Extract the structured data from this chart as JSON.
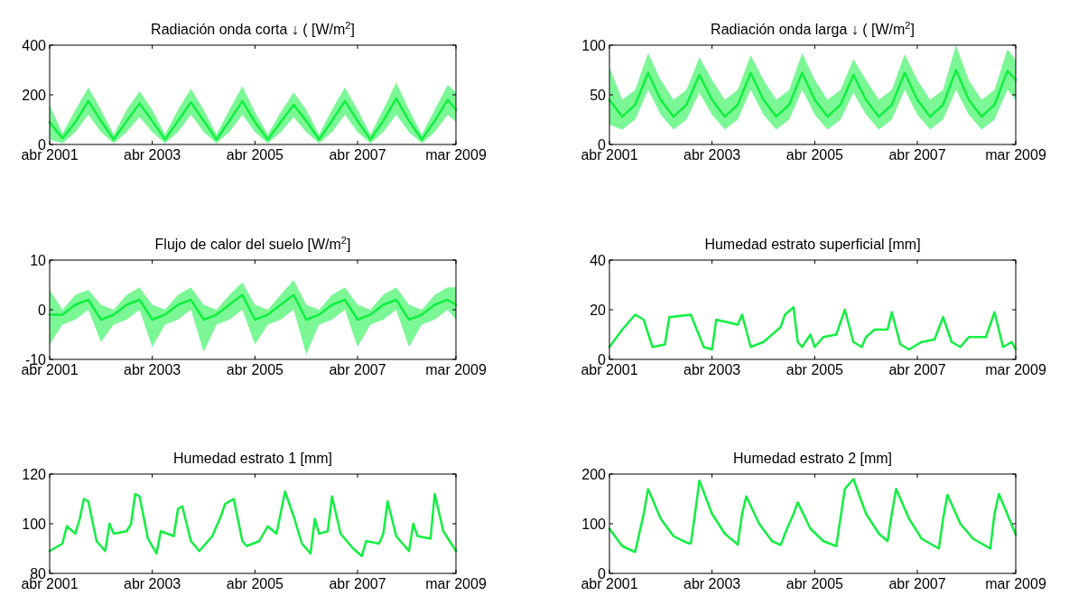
{
  "chart_data": [
    {
      "type": "line",
      "title": "Radiación onda corta ↓ ( [W/m$^{2}$]",
      "xlim": [
        "2001-04-01",
        "2009-03-01"
      ],
      "xticks": [
        {
          "value": "2001-04-01",
          "label": "abr 2001"
        },
        {
          "value": "2003-04-01",
          "label": "abr 2003"
        },
        {
          "value": "2005-04-01",
          "label": "abr 2005"
        },
        {
          "value": "2007-04-01",
          "label": "abr 2007"
        },
        {
          "value": "2009-03-01",
          "label": "mar 2009"
        }
      ],
      "ylim": [
        0,
        400
      ],
      "yticks": [
        0,
        200,
        400
      ],
      "x": [
        "2001-04",
        "2001-07",
        "2001-10",
        "2002-01",
        "2002-04",
        "2002-07",
        "2002-10",
        "2003-01",
        "2003-04",
        "2003-07",
        "2003-10",
        "2004-01",
        "2004-04",
        "2004-07",
        "2004-10",
        "2005-01",
        "2005-04",
        "2005-07",
        "2005-10",
        "2006-01",
        "2006-04",
        "2006-07",
        "2006-10",
        "2007-01",
        "2007-04",
        "2007-07",
        "2007-10",
        "2008-01",
        "2008-04",
        "2008-07",
        "2008-10",
        "2009-01",
        "2009-03"
      ],
      "series": [
        {
          "color": "#10f040",
          "values": [
            90,
            25,
            90,
            175,
            95,
            20,
            95,
            165,
            95,
            20,
            95,
            170,
            95,
            20,
            95,
            175,
            90,
            20,
            90,
            160,
            95,
            20,
            95,
            175,
            95,
            20,
            95,
            185,
            95,
            20,
            95,
            180,
            140
          ],
          "lower": [
            20,
            5,
            50,
            120,
            50,
            5,
            50,
            110,
            50,
            5,
            50,
            120,
            50,
            5,
            50,
            120,
            50,
            5,
            50,
            110,
            50,
            5,
            50,
            120,
            50,
            5,
            50,
            120,
            50,
            5,
            50,
            120,
            90
          ],
          "upper": [
            160,
            45,
            140,
            230,
            140,
            40,
            140,
            215,
            140,
            40,
            140,
            225,
            140,
            40,
            140,
            235,
            130,
            40,
            130,
            210,
            140,
            40,
            140,
            230,
            140,
            40,
            140,
            250,
            140,
            40,
            140,
            240,
            210
          ]
        }
      ]
    },
    {
      "type": "line",
      "title": "Radiación onda larga ↓ ( [W/m$^{2}$]",
      "xlim": [
        "2001-04-01",
        "2009-03-01"
      ],
      "xticks": [
        {
          "value": "2001-04-01",
          "label": "abr 2001"
        },
        {
          "value": "2003-04-01",
          "label": "abr 2003"
        },
        {
          "value": "2005-04-01",
          "label": "abr 2005"
        },
        {
          "value": "2007-04-01",
          "label": "abr 2007"
        },
        {
          "value": "2009-03-01",
          "label": "mar 2009"
        }
      ],
      "ylim": [
        0,
        100
      ],
      "yticks": [
        0,
        50,
        100
      ],
      "x": [
        "2001-04",
        "2001-07",
        "2001-10",
        "2002-01",
        "2002-04",
        "2002-07",
        "2002-10",
        "2003-01",
        "2003-04",
        "2003-07",
        "2003-10",
        "2004-01",
        "2004-04",
        "2004-07",
        "2004-10",
        "2005-01",
        "2005-04",
        "2005-07",
        "2005-10",
        "2006-01",
        "2006-04",
        "2006-07",
        "2006-10",
        "2007-01",
        "2007-04",
        "2007-07",
        "2007-10",
        "2008-01",
        "2008-04",
        "2008-07",
        "2008-10",
        "2009-01",
        "2009-03"
      ],
      "series": [
        {
          "color": "#10f040",
          "values": [
            45,
            28,
            40,
            72,
            45,
            28,
            40,
            70,
            45,
            28,
            40,
            72,
            45,
            28,
            40,
            72,
            45,
            28,
            40,
            70,
            45,
            28,
            40,
            72,
            45,
            28,
            40,
            75,
            45,
            28,
            40,
            74,
            65
          ],
          "lower": [
            20,
            15,
            25,
            55,
            30,
            15,
            25,
            52,
            30,
            15,
            25,
            55,
            30,
            15,
            25,
            55,
            30,
            15,
            25,
            52,
            30,
            15,
            25,
            55,
            30,
            15,
            25,
            55,
            30,
            15,
            25,
            55,
            45
          ],
          "upper": [
            78,
            45,
            55,
            92,
            65,
            45,
            55,
            88,
            65,
            45,
            55,
            90,
            65,
            45,
            55,
            92,
            65,
            45,
            55,
            86,
            65,
            45,
            55,
            91,
            65,
            45,
            55,
            100,
            65,
            45,
            55,
            96,
            85
          ]
        }
      ]
    },
    {
      "type": "line",
      "title": "Flujo de calor del suelo [W/m$^{2}$]",
      "xlim": [
        "2001-04-01",
        "2009-03-01"
      ],
      "xticks": [
        {
          "value": "2001-04-01",
          "label": "abr 2001"
        },
        {
          "value": "2003-04-01",
          "label": "abr 2003"
        },
        {
          "value": "2005-04-01",
          "label": "abr 2005"
        },
        {
          "value": "2007-04-01",
          "label": "abr 2007"
        },
        {
          "value": "2009-03-01",
          "label": "mar 2009"
        }
      ],
      "ylim": [
        -10,
        10
      ],
      "yticks": [
        -10,
        0,
        10
      ],
      "x": [
        "2001-04",
        "2001-07",
        "2001-10",
        "2002-01",
        "2002-04",
        "2002-07",
        "2002-10",
        "2003-01",
        "2003-04",
        "2003-07",
        "2003-10",
        "2004-01",
        "2004-04",
        "2004-07",
        "2004-10",
        "2005-01",
        "2005-04",
        "2005-07",
        "2005-10",
        "2006-01",
        "2006-04",
        "2006-07",
        "2006-10",
        "2007-01",
        "2007-04",
        "2007-07",
        "2007-10",
        "2008-01",
        "2008-04",
        "2008-07",
        "2008-10",
        "2009-01",
        "2009-03"
      ],
      "series": [
        {
          "color": "#10f040",
          "values": [
            -1,
            -1,
            1,
            2,
            -2,
            -1,
            1,
            2,
            -2,
            -1,
            1,
            2,
            -2,
            -1,
            1,
            3,
            -2,
            -1,
            1,
            3,
            -2,
            -1,
            1,
            2,
            -2,
            -1,
            1,
            2,
            -2,
            -1,
            1,
            2,
            1
          ],
          "lower": [
            -7,
            -3,
            -2,
            0,
            -6.5,
            -3,
            -2,
            0,
            -7.5,
            -3,
            -2,
            0,
            -8.5,
            -3,
            -2,
            0,
            -7,
            -3,
            -2,
            0,
            -9,
            -3,
            -2,
            0,
            -7.5,
            -3,
            -2,
            0,
            -7.5,
            -3,
            -2,
            0,
            -2
          ],
          "upper": [
            4,
            0,
            3,
            4,
            1,
            0,
            3,
            4.5,
            1,
            0,
            3,
            4.5,
            1,
            0,
            3,
            5.5,
            1,
            0,
            3,
            6,
            1,
            0,
            3,
            4.5,
            1,
            0,
            3,
            4.5,
            1,
            0,
            3,
            4.5,
            4.5
          ]
        }
      ]
    },
    {
      "type": "line",
      "title": "Humedad estrato superficial [mm]",
      "xlim": [
        "2001-04-01",
        "2009-03-01"
      ],
      "xticks": [
        {
          "value": "2001-04-01",
          "label": "abr 2001"
        },
        {
          "value": "2003-04-01",
          "label": "abr 2003"
        },
        {
          "value": "2005-04-01",
          "label": "abr 2005"
        },
        {
          "value": "2007-04-01",
          "label": "abr 2007"
        },
        {
          "value": "2009-03-01",
          "label": "mar 2009"
        }
      ],
      "ylim": [
        0,
        40
      ],
      "yticks": [
        0,
        20,
        40
      ],
      "x": [
        "2001-04",
        "2001-07",
        "2001-10",
        "2001-12",
        "2002-02",
        "2002-05",
        "2002-06",
        "2002-11",
        "2003-02",
        "2003-04",
        "2003-05",
        "2003-10",
        "2003-11",
        "2004-01",
        "2004-04",
        "2004-08",
        "2004-09",
        "2004-11",
        "2004-12",
        "2005-01",
        "2005-03",
        "2005-04",
        "2005-06",
        "2005-09",
        "2005-11",
        "2006-01",
        "2006-03",
        "2006-04",
        "2006-06",
        "2006-09",
        "2006-10",
        "2006-12",
        "2007-02",
        "2007-05",
        "2007-08",
        "2007-10",
        "2007-12",
        "2008-02",
        "2008-04",
        "2008-08",
        "2008-10",
        "2008-12",
        "2009-02",
        "2009-03"
      ],
      "series": [
        {
          "color": "#10f040",
          "values": [
            5,
            12,
            18,
            16,
            5,
            6,
            17,
            18,
            5,
            4,
            16,
            14,
            18,
            5,
            7,
            13,
            18,
            21,
            7,
            5,
            10,
            5,
            9,
            10,
            20,
            7,
            5,
            9,
            12,
            12,
            19,
            6,
            4,
            7,
            8,
            17,
            7,
            5,
            9,
            9,
            19,
            5,
            7,
            4
          ]
        }
      ]
    },
    {
      "type": "line",
      "title": "Humedad estrato 1 [mm]",
      "xlim": [
        "2001-04-01",
        "2009-03-01"
      ],
      "xticks": [
        {
          "value": "2001-04-01",
          "label": "abr 2001"
        },
        {
          "value": "2003-04-01",
          "label": "abr 2003"
        },
        {
          "value": "2005-04-01",
          "label": "abr 2005"
        },
        {
          "value": "2007-04-01",
          "label": "abr 2007"
        },
        {
          "value": "2009-03-01",
          "label": "mar 2009"
        }
      ],
      "ylim": [
        80,
        120
      ],
      "yticks": [
        80,
        100,
        120
      ],
      "x": [
        "2001-04",
        "2001-07",
        "2001-08",
        "2001-10",
        "2001-11",
        "2001-12",
        "2002-01",
        "2002-03",
        "2002-05",
        "2002-06",
        "2002-07",
        "2002-10",
        "2002-11",
        "2002-12",
        "2003-01",
        "2003-03",
        "2003-05",
        "2003-06",
        "2003-09",
        "2003-10",
        "2003-11",
        "2004-01",
        "2004-03",
        "2004-06",
        "2004-08",
        "2004-09",
        "2004-11",
        "2005-01",
        "2005-02",
        "2005-05",
        "2005-07",
        "2005-09",
        "2005-11",
        "2006-01",
        "2006-03",
        "2006-05",
        "2006-06",
        "2006-07",
        "2006-09",
        "2006-10",
        "2006-12",
        "2007-03",
        "2007-05",
        "2007-06",
        "2007-09",
        "2007-10",
        "2007-11",
        "2008-01",
        "2008-04",
        "2008-05",
        "2008-06",
        "2008-09",
        "2008-10",
        "2008-12",
        "2009-03"
      ],
      "series": [
        {
          "color": "#10f040",
          "values": [
            89,
            92,
            99,
            96,
            102,
            110,
            109,
            93,
            89,
            100,
            96,
            97,
            100,
            112,
            111,
            94,
            88,
            97,
            95,
            106,
            107,
            93,
            89,
            95,
            103,
            108,
            110,
            93,
            91,
            93,
            99,
            96,
            113,
            103,
            92,
            88,
            102,
            96,
            97,
            111,
            96,
            90,
            87,
            93,
            92,
            96,
            109,
            95,
            89,
            100,
            95,
            94,
            112,
            97,
            89
          ]
        }
      ]
    },
    {
      "type": "line",
      "title": "Humedad estrato 2 [mm]",
      "xlim": [
        "2001-04-01",
        "2009-03-01"
      ],
      "xticks": [
        {
          "value": "2001-04-01",
          "label": "abr 2001"
        },
        {
          "value": "2003-04-01",
          "label": "abr 2003"
        },
        {
          "value": "2005-04-01",
          "label": "abr 2005"
        },
        {
          "value": "2007-04-01",
          "label": "abr 2007"
        },
        {
          "value": "2009-03-01",
          "label": "mar 2009"
        }
      ],
      "ylim": [
        0,
        200
      ],
      "yticks": [
        0,
        100,
        200
      ],
      "x": [
        "2001-04",
        "2001-07",
        "2001-10",
        "2001-12",
        "2002-01",
        "2002-04",
        "2002-07",
        "2002-10",
        "2002-11",
        "2002-12",
        "2003-01",
        "2003-04",
        "2003-07",
        "2003-10",
        "2003-11",
        "2003-12",
        "2004-03",
        "2004-06",
        "2004-08",
        "2004-09",
        "2004-11",
        "2004-12",
        "2005-03",
        "2005-06",
        "2005-09",
        "2005-11",
        "2006-01",
        "2006-04",
        "2006-07",
        "2006-09",
        "2006-10",
        "2006-11",
        "2007-02",
        "2007-05",
        "2007-09",
        "2007-10",
        "2007-11",
        "2008-02",
        "2008-05",
        "2008-09",
        "2008-10",
        "2008-11",
        "2009-03"
      ],
      "series": [
        {
          "color": "#10f040",
          "values": [
            90,
            55,
            43,
            120,
            170,
            110,
            75,
            62,
            60,
            120,
            187,
            120,
            80,
            58,
            120,
            155,
            100,
            65,
            57,
            80,
            120,
            143,
            90,
            65,
            55,
            170,
            190,
            120,
            80,
            65,
            120,
            170,
            110,
            70,
            50,
            110,
            158,
            100,
            70,
            50,
            120,
            160,
            78
          ]
        }
      ]
    }
  ]
}
